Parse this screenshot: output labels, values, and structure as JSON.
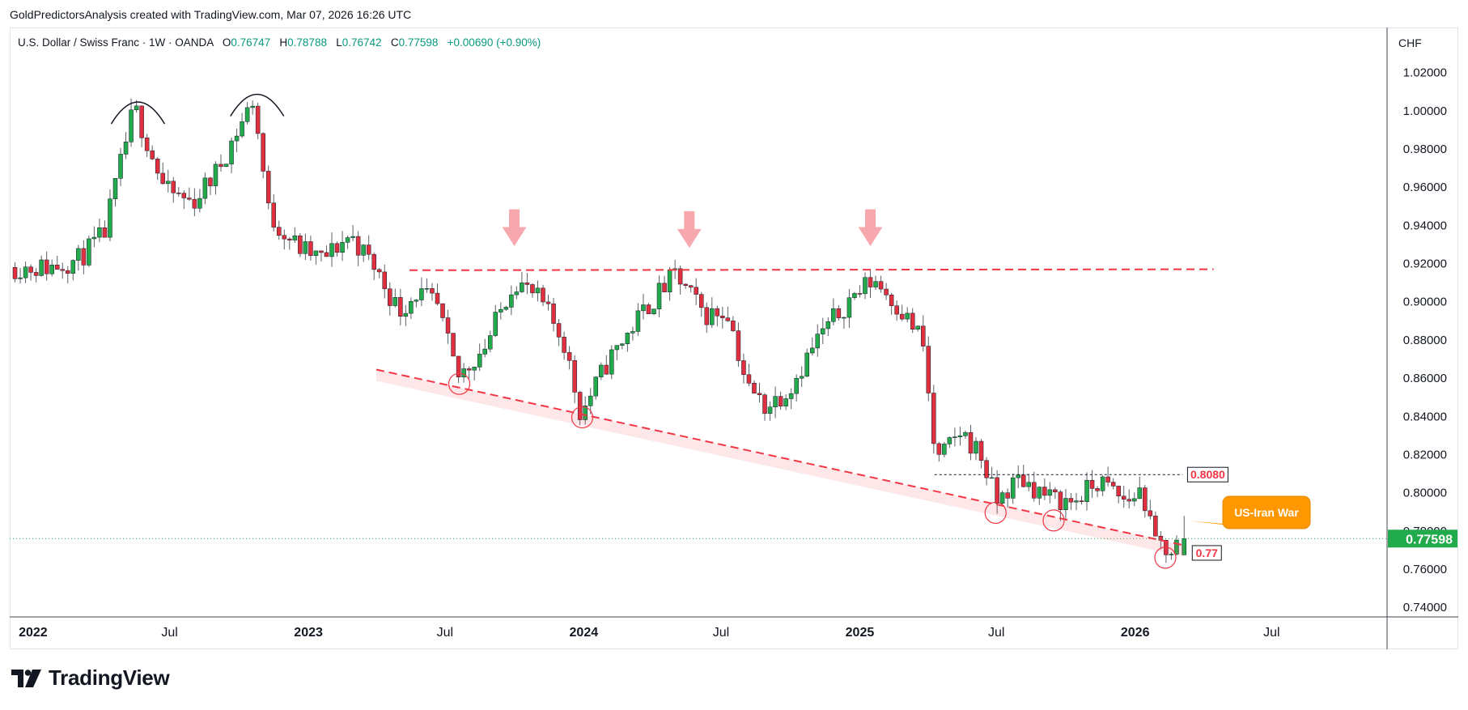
{
  "header": {
    "attribution": "GoldPredictorsAnalysis created with TradingView.com, Mar 07, 2026 16:26 UTC"
  },
  "legend": {
    "symbol": "U.S. Dollar / Swiss Franc · 1W · OANDA",
    "open_label": "O",
    "open": "0.76747",
    "high_label": "H",
    "high": "0.78788",
    "low_label": "L",
    "low": "0.76742",
    "close_label": "C",
    "close": "0.77598",
    "change": "+0.00690 (+0.90%)"
  },
  "currency": "CHF",
  "brand": {
    "name": "TradingView"
  },
  "colors": {
    "up": "#22ab4c",
    "down": "#e03040",
    "resistance": "#f23645",
    "label_orange": "#ff9800",
    "price_tag": "#22ab4c"
  },
  "chart_data": {
    "type": "candlestick",
    "symbol": "USD/CHF",
    "timeframe": "1W",
    "ylim": [
      0.735,
      1.03
    ],
    "xlim": [
      "2021-12-01",
      "2026-12-01"
    ],
    "y_ticks": [
      "1.02000",
      "1.00000",
      "0.98000",
      "0.96000",
      "0.94000",
      "0.92000",
      "0.90000",
      "0.88000",
      "0.86000",
      "0.84000",
      "0.82000",
      "0.80000",
      "0.78000",
      "0.76000",
      "0.74000"
    ],
    "x_ticks": [
      {
        "label": "2022",
        "date": "2022-01-01",
        "bold": true
      },
      {
        "label": "Jul",
        "date": "2022-07-01",
        "bold": false
      },
      {
        "label": "2023",
        "date": "2023-01-01",
        "bold": true
      },
      {
        "label": "Jul",
        "date": "2023-07-01",
        "bold": false
      },
      {
        "label": "2024",
        "date": "2024-01-01",
        "bold": true
      },
      {
        "label": "Jul",
        "date": "2024-07-01",
        "bold": false
      },
      {
        "label": "2025",
        "date": "2025-01-01",
        "bold": true
      },
      {
        "label": "Jul",
        "date": "2025-07-01",
        "bold": false
      },
      {
        "label": "2026",
        "date": "2026-01-01",
        "bold": true
      },
      {
        "label": "Jul",
        "date": "2026-07-01",
        "bold": false
      }
    ],
    "price_path": [
      [
        "2021-12-01",
        0.918
      ],
      [
        "2022-01-20",
        0.918
      ],
      [
        "2022-03-01",
        0.922
      ],
      [
        "2022-04-05",
        0.935
      ],
      [
        "2022-05-15",
        1.002
      ],
      [
        "2022-06-25",
        0.958
      ],
      [
        "2022-08-01",
        0.952
      ],
      [
        "2022-09-01",
        0.968
      ],
      [
        "2022-10-20",
        1.006
      ],
      [
        "2022-11-10",
        0.945
      ],
      [
        "2022-12-20",
        0.928
      ],
      [
        "2023-01-20",
        0.922
      ],
      [
        "2023-02-25",
        0.935
      ],
      [
        "2023-03-30",
        0.918
      ],
      [
        "2023-05-01",
        0.895
      ],
      [
        "2023-05-25",
        0.905
      ],
      [
        "2023-06-20",
        0.898
      ],
      [
        "2023-07-18",
        0.86
      ],
      [
        "2023-08-25",
        0.878
      ],
      [
        "2023-10-01",
        0.912
      ],
      [
        "2023-11-05",
        0.9
      ],
      [
        "2023-12-05",
        0.88
      ],
      [
        "2023-12-28",
        0.841
      ],
      [
        "2024-02-01",
        0.868
      ],
      [
        "2024-03-20",
        0.895
      ],
      [
        "2024-05-01",
        0.914
      ],
      [
        "2024-06-10",
        0.893
      ],
      [
        "2024-07-10",
        0.895
      ],
      [
        "2024-08-05",
        0.855
      ],
      [
        "2024-08-30",
        0.845
      ],
      [
        "2024-09-30",
        0.855
      ],
      [
        "2024-11-05",
        0.88
      ],
      [
        "2024-12-20",
        0.902
      ],
      [
        "2025-01-20",
        0.912
      ],
      [
        "2025-02-20",
        0.898
      ],
      [
        "2025-03-25",
        0.88
      ],
      [
        "2025-04-12",
        0.815
      ],
      [
        "2025-05-15",
        0.832
      ],
      [
        "2025-06-10",
        0.82
      ],
      [
        "2025-07-01",
        0.795
      ],
      [
        "2025-08-01",
        0.808
      ],
      [
        "2025-09-10",
        0.797
      ],
      [
        "2025-10-10",
        0.795
      ],
      [
        "2025-11-15",
        0.806
      ],
      [
        "2025-12-20",
        0.795
      ],
      [
        "2026-01-10",
        0.802
      ],
      [
        "2026-01-25",
        0.775
      ],
      [
        "2026-02-15",
        0.77
      ],
      [
        "2026-03-07",
        0.776
      ]
    ],
    "last_candle": {
      "date": "2026-03-07",
      "open": 0.76747,
      "high": 0.78788,
      "low": 0.76742,
      "close": 0.77598
    },
    "lines": {
      "resistance": {
        "from": [
          "2023-05-15",
          0.9165
        ],
        "to": [
          "2026-04-15",
          0.917
        ]
      },
      "trendline": {
        "from": [
          "2023-04-01",
          0.8645
        ],
        "to": [
          "2026-03-07",
          0.7725
        ]
      },
      "range_top": {
        "from": [
          "2025-04-10",
          0.8095
        ],
        "to": [
          "2026-03-05",
          0.8095
        ]
      },
      "current_price": 0.77598
    },
    "markers": {
      "double_top_arcs": [
        [
          "2022-05-20",
          1.005
        ],
        [
          "2022-10-25",
          1.009
        ]
      ],
      "down_arrows": [
        [
          "2023-10-01",
          0.927
        ],
        [
          "2024-05-20",
          0.926
        ],
        [
          "2025-01-15",
          0.927
        ]
      ],
      "circles": [
        [
          "2023-07-20",
          0.857
        ],
        [
          "2023-12-30",
          0.8395
        ],
        [
          "2025-06-30",
          0.7895
        ],
        [
          "2025-09-15",
          0.7855
        ],
        [
          "2026-02-10",
          0.766
        ]
      ]
    },
    "labels": {
      "range_top": "0.8080",
      "support": "0.77",
      "current_price": "0.77598",
      "event": "US-Iran War"
    }
  }
}
